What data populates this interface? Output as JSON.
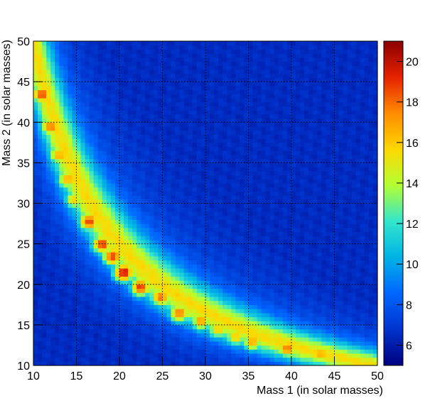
{
  "chart_data": {
    "type": "heatmap",
    "xlabel": "Mass 1 (in solar masses)",
    "ylabel": "Mass 2 (in solar masses)",
    "xlim": [
      10,
      50
    ],
    "ylim": [
      10,
      50
    ],
    "x_ticks": [
      10,
      15,
      20,
      25,
      30,
      35,
      40,
      45,
      50
    ],
    "y_ticks": [
      10,
      15,
      20,
      25,
      30,
      35,
      40,
      45,
      50
    ],
    "colorbar": {
      "range": [
        5,
        21
      ],
      "ticks": [
        6,
        8,
        10,
        12,
        14,
        16,
        18,
        20
      ]
    },
    "grid": true,
    "colormap": [
      "#000080",
      "#0033cc",
      "#0066ff",
      "#00b3e6",
      "#33e6cc",
      "#b3ff33",
      "#ffd700",
      "#ff8c00",
      "#e62200",
      "#8b0000"
    ],
    "ridge": {
      "description_formula": "ridge along m1*m2 = 500 (high counts), background ~6-7",
      "peak_value": 21,
      "background_value": 6.5,
      "hotspots": [
        [
          11.0,
          43.5,
          19
        ],
        [
          12.0,
          39.5,
          18
        ],
        [
          13.0,
          36.0,
          17
        ],
        [
          14.0,
          33.0,
          17
        ],
        [
          14.8,
          30.5,
          16
        ],
        [
          16.5,
          27.8,
          19
        ],
        [
          18.0,
          25.0,
          19
        ],
        [
          19.2,
          23.5,
          19
        ],
        [
          20.5,
          21.5,
          20
        ],
        [
          22.5,
          19.7,
          19
        ],
        [
          24.8,
          18.5,
          18
        ],
        [
          27.0,
          16.5,
          18
        ],
        [
          29.5,
          15.5,
          17
        ],
        [
          31.5,
          14.5,
          16
        ],
        [
          33.5,
          13.6,
          16
        ],
        [
          35.5,
          13.0,
          17
        ],
        [
          39.5,
          12.2,
          18
        ],
        [
          43.5,
          11.5,
          17
        ],
        [
          48.0,
          10.8,
          14
        ]
      ]
    }
  }
}
